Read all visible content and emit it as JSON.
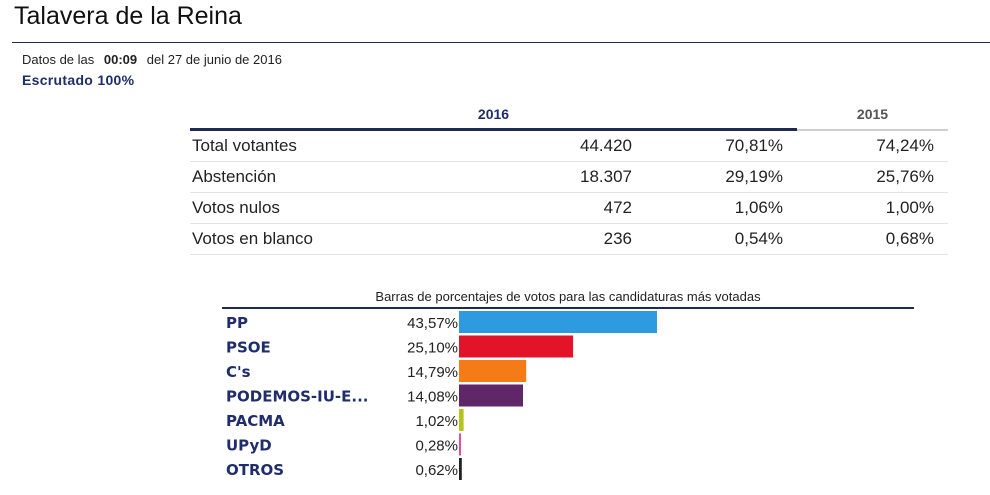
{
  "page": {
    "title": "Talavera de la Reina",
    "data_prefix": "Datos de las",
    "time": "00:09",
    "date_text": "del 27 de junio de 2016",
    "scrutiny": "Escrutado 100%"
  },
  "summary": {
    "col_2016": "2016",
    "col_2015": "2015",
    "rows": [
      {
        "label": "Total votantes",
        "count": "44.420",
        "pct": "70,81%",
        "prev": "74,24%"
      },
      {
        "label": "Abstención",
        "count": "18.307",
        "pct": "29,19%",
        "prev": "25,76%"
      },
      {
        "label": "Votos nulos",
        "count": "472",
        "pct": "1,06%",
        "prev": "1,00%"
      },
      {
        "label": "Votos en blanco",
        "count": "236",
        "pct": "0,54%",
        "prev": "0,68%"
      }
    ]
  },
  "chart_data": {
    "type": "bar",
    "title": "Barras de porcentajes de votos para las candidaturas más votadas",
    "orientation": "horizontal",
    "categories": [
      "PP",
      "PSOE",
      "C's",
      "PODEMOS-IU-E...",
      "PACMA",
      "UPyD",
      "OTROS"
    ],
    "values": [
      43.57,
      25.1,
      14.79,
      14.08,
      1.02,
      0.28,
      0.62
    ],
    "value_labels": [
      "43,57%",
      "25,10%",
      "14,79%",
      "14,08%",
      "1,02%",
      "0,28%",
      "0,62%"
    ],
    "colors": [
      "#2e9be0",
      "#e3142a",
      "#f47b16",
      "#5f2767",
      "#b5c41c",
      "#e44ca5",
      "#222222"
    ],
    "xlim": [
      0,
      100
    ],
    "grid": false
  }
}
